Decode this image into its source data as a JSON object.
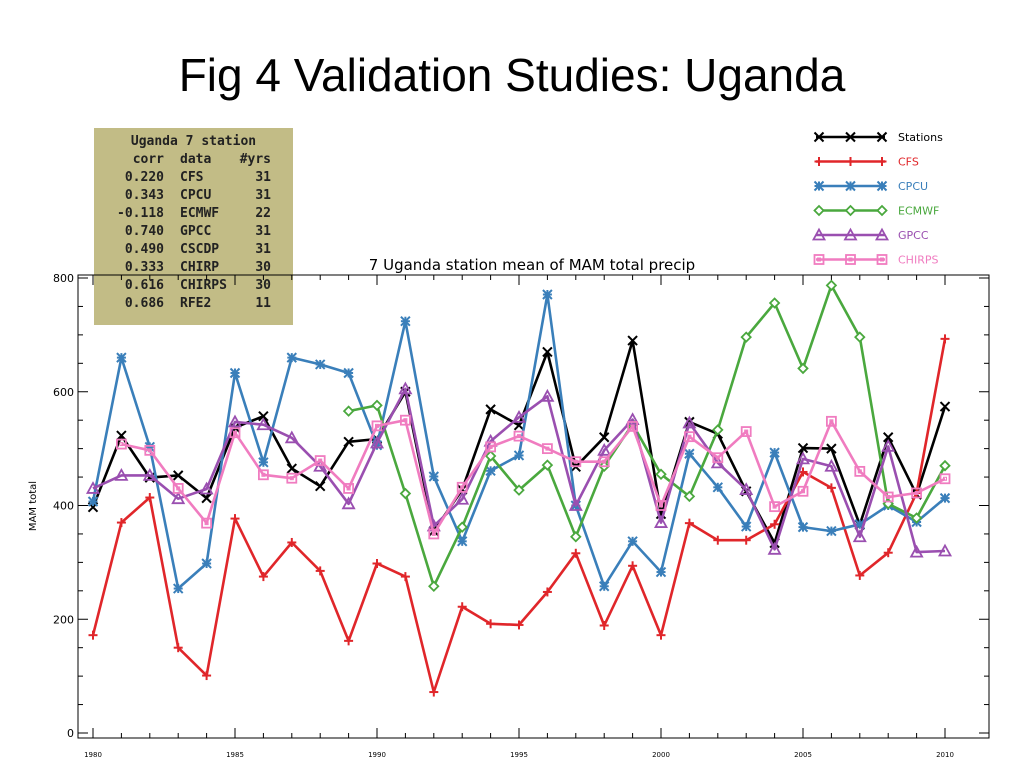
{
  "slide": {
    "title": "Fig 4 Validation Studies: Uganda"
  },
  "stats_table": {
    "title": "Uganda 7 station",
    "headers": [
      "corr",
      "data",
      "#yrs"
    ],
    "rows": [
      [
        "0.220",
        "CFS",
        "31"
      ],
      [
        "0.343",
        "CPCU",
        "31"
      ],
      [
        "-0.118",
        "ECMWF",
        "22"
      ],
      [
        "0.740",
        "GPCC",
        "31"
      ],
      [
        "0.490",
        "CSCDP",
        "31"
      ],
      [
        "0.333",
        "CHIRP",
        "30"
      ],
      [
        "0.616",
        "CHIRPS",
        "30"
      ],
      [
        "0.686",
        "RFE2",
        "11"
      ]
    ]
  },
  "chart_data": {
    "type": "line",
    "title": "7 Uganda station mean of MAM total precip",
    "xlabel": "",
    "ylabel": "MAM total",
    "xlim": [
      1980,
      2010
    ],
    "ylim": [
      0,
      800
    ],
    "x_ticks": [
      "1980",
      "1985",
      "1990",
      "1995",
      "2000",
      "2005",
      "2010"
    ],
    "y_ticks": [
      "0",
      "200",
      "400",
      "600",
      "800"
    ],
    "grid": false,
    "legend_position": "top-right",
    "series": [
      {
        "name": "Stations",
        "color": "#000000",
        "marker": "x",
        "x": [
          1980,
          1981,
          1982,
          1983,
          1984,
          1985,
          1986,
          1987,
          1988,
          1989,
          1990,
          1991,
          1992,
          1993,
          1994,
          1995,
          1996,
          1997,
          1998,
          1999,
          2000,
          2001,
          2002,
          2003,
          2004,
          2005,
          2006,
          2007,
          2008,
          2009,
          2010
        ],
        "values": [
          397,
          523,
          449,
          453,
          413,
          537,
          557,
          465,
          434,
          512,
          517,
          600,
          355,
          428,
          569,
          541,
          670,
          468,
          520,
          690,
          385,
          547,
          526,
          425,
          334,
          501,
          500,
          366,
          520,
          419,
          574
        ]
      },
      {
        "name": "CFS",
        "color": "#e0262a",
        "marker": "plus",
        "x": [
          1980,
          1981,
          1982,
          1983,
          1984,
          1985,
          1986,
          1987,
          1988,
          1989,
          1990,
          1991,
          1992,
          1993,
          1994,
          1995,
          1996,
          1997,
          1998,
          1999,
          2000,
          2001,
          2002,
          2003,
          2004,
          2005,
          2006,
          2007,
          2008,
          2009,
          2010
        ],
        "values": [
          172,
          370,
          414,
          150,
          101,
          377,
          275,
          335,
          285,
          162,
          298,
          275,
          72,
          222,
          192,
          190,
          248,
          316,
          189,
          294,
          172,
          369,
          339,
          339,
          367,
          459,
          431,
          277,
          317,
          422,
          693
        ]
      },
      {
        "name": "CPCU",
        "color": "#3a7fba",
        "marker": "star",
        "x": [
          1980,
          1981,
          1982,
          1983,
          1984,
          1985,
          1986,
          1987,
          1988,
          1989,
          1990,
          1991,
          1992,
          1993,
          1994,
          1995,
          1996,
          1997,
          1998,
          1999,
          2000,
          2001,
          2002,
          2003,
          2004,
          2005,
          2006,
          2007,
          2008,
          2009,
          2010
        ],
        "values": [
          407,
          660,
          503,
          254,
          298,
          633,
          476,
          660,
          648,
          633,
          506,
          724,
          451,
          337,
          461,
          488,
          771,
          400,
          258,
          337,
          283,
          491,
          432,
          363,
          493,
          362,
          355,
          367,
          400,
          371,
          413
        ]
      },
      {
        "name": "ECMWF",
        "color": "#4aa83e",
        "marker": "diamond",
        "x": [
          1989,
          1990,
          1991,
          1992,
          1993,
          1994,
          1995,
          1996,
          1997,
          1998,
          1999,
          2000,
          2001,
          2002,
          2003,
          2004,
          2005,
          2006,
          2007,
          2008,
          2009,
          2010
        ],
        "values": [
          566,
          576,
          421,
          258,
          362,
          487,
          427,
          471,
          345,
          469,
          543,
          455,
          416,
          533,
          696,
          756,
          641,
          787,
          696,
          403,
          378,
          470
        ]
      },
      {
        "name": "GPCC",
        "color": "#9a4fb0",
        "marker": "triangle",
        "x": [
          1980,
          1981,
          1982,
          1983,
          1984,
          1985,
          1986,
          1987,
          1988,
          1989,
          1990,
          1991,
          1992,
          1993,
          1994,
          1995,
          1996,
          1997,
          1998,
          1999,
          2000,
          2001,
          2002,
          2003,
          2004,
          2005,
          2006,
          2007,
          2008,
          2009,
          2010
        ],
        "values": [
          430,
          453,
          453,
          412,
          429,
          547,
          542,
          519,
          469,
          403,
          510,
          605,
          364,
          411,
          513,
          555,
          592,
          400,
          497,
          551,
          370,
          545,
          475,
          428,
          323,
          482,
          469,
          345,
          504,
          318,
          320
        ]
      },
      {
        "name": "CHIRPS",
        "color": "#f07cc0",
        "marker": "square",
        "x": [
          1981,
          1982,
          1983,
          1984,
          1985,
          1986,
          1987,
          1988,
          1989,
          1990,
          1991,
          1992,
          1993,
          1994,
          1995,
          1996,
          1997,
          1998,
          1999,
          2000,
          2001,
          2002,
          2003,
          2004,
          2005,
          2006,
          2007,
          2008,
          2009,
          2010
        ],
        "values": [
          508,
          497,
          430,
          369,
          528,
          454,
          448,
          479,
          430,
          540,
          550,
          350,
          432,
          503,
          522,
          500,
          477,
          477,
          539,
          400,
          521,
          484,
          530,
          398,
          425,
          548,
          460,
          415,
          422,
          447
        ]
      }
    ]
  }
}
